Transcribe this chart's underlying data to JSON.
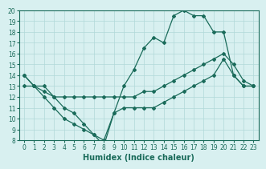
{
  "line1_x": [
    0,
    1,
    2,
    3,
    4,
    5,
    6,
    7,
    8,
    9,
    10,
    11,
    12,
    13,
    14,
    15,
    16,
    17,
    18,
    19,
    20,
    21,
    22,
    23
  ],
  "line1_y": [
    14,
    13,
    13,
    12,
    11,
    10.5,
    9.5,
    8.5,
    8.0,
    10.5,
    13.0,
    14.5,
    16.5,
    17.5,
    17.0,
    19.5,
    20.0,
    19.5,
    19.5,
    18.0,
    18.0,
    14.0,
    13.0,
    13.0
  ],
  "line2_x": [
    0,
    1,
    2,
    3,
    4,
    5,
    6,
    7,
    8,
    9,
    10,
    11,
    12,
    13,
    14,
    15,
    16,
    17,
    18,
    19,
    20,
    21,
    22,
    23
  ],
  "line2_y": [
    13.0,
    13.0,
    12.5,
    12.0,
    12.0,
    12.0,
    12.0,
    12.0,
    12.0,
    12.0,
    12.0,
    12.0,
    12.5,
    12.5,
    13.0,
    13.5,
    14.0,
    14.5,
    15.0,
    15.5,
    16.0,
    15.0,
    13.5,
    13.0
  ],
  "line3_x": [
    0,
    1,
    2,
    3,
    4,
    5,
    6,
    7,
    8,
    9,
    10,
    11,
    12,
    13,
    14,
    15,
    16,
    17,
    18,
    19,
    20,
    21,
    22,
    23
  ],
  "line3_y": [
    14.0,
    13.0,
    12.0,
    11.0,
    10.0,
    9.5,
    9.0,
    8.5,
    7.5,
    10.5,
    11.0,
    11.0,
    11.0,
    11.0,
    11.5,
    12.0,
    12.5,
    13.0,
    13.5,
    14.0,
    15.5,
    14.0,
    13.0,
    13.0
  ],
  "line_color": "#1a6b5a",
  "bg_color": "#d8f0f0",
  "grid_color": "#b0d8d8",
  "xlabel": "Humidex (Indice chaleur)",
  "xlim": [
    -0.5,
    23.5
  ],
  "ylim": [
    8,
    20
  ],
  "xticks": [
    0,
    1,
    2,
    3,
    4,
    5,
    6,
    7,
    8,
    9,
    10,
    11,
    12,
    13,
    14,
    15,
    16,
    17,
    18,
    19,
    20,
    21,
    22,
    23
  ],
  "yticks": [
    8,
    9,
    10,
    11,
    12,
    13,
    14,
    15,
    16,
    17,
    18,
    19,
    20
  ],
  "tick_fontsize": 5.5,
  "label_fontsize": 7,
  "marker": "D",
  "markersize": 2.0,
  "linewidth": 0.9
}
